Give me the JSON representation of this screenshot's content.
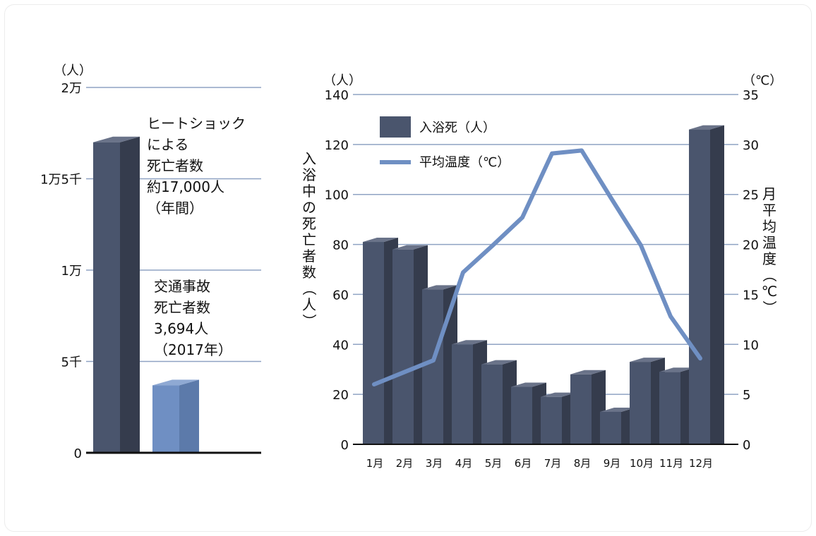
{
  "chart_data": [
    {
      "type": "bar",
      "ylabel_unit": "（人）",
      "y_tick_labels": [
        "0",
        "5千",
        "1万",
        "1万5千",
        "2万"
      ],
      "y_tick_values": [
        0,
        5000,
        10000,
        15000,
        20000
      ],
      "ylim": [
        0,
        20000
      ],
      "grid": true,
      "categories": [
        "ヒートショックによる死亡者数",
        "交通事故死亡者数"
      ],
      "values": [
        17000,
        3694
      ],
      "colors": [
        "#4a556d",
        "#6f8fc3"
      ],
      "annotations": [
        [
          "ヒートショック",
          "による",
          "死亡者数",
          "約17,000人",
          "（年間）"
        ],
        [
          "交通事故",
          "死亡者数",
          "3,694人",
          "（2017年）"
        ]
      ]
    },
    {
      "type": "bar+line",
      "left_unit": "（人）",
      "right_unit": "（℃）",
      "left_axis_label": "入浴中の死亡者数（人）",
      "right_axis_label": "月平均温度（℃）",
      "left_ticks": [
        "0",
        "20",
        "40",
        "60",
        "80",
        "100",
        "120",
        "140"
      ],
      "right_ticks": [
        "0",
        "5",
        "10",
        "15",
        "20",
        "25",
        "30",
        "35"
      ],
      "ylim_left": [
        0,
        140
      ],
      "ylim_right": [
        0,
        35
      ],
      "grid": true,
      "months": [
        "1月",
        "2月",
        "3月",
        "4月",
        "5月",
        "6月",
        "7月",
        "8月",
        "9月",
        "10月",
        "11月",
        "12月"
      ],
      "series": [
        {
          "name": "入浴死（人）",
          "type": "bar",
          "axis": "left",
          "values": [
            81,
            78,
            62,
            40,
            32,
            23,
            19,
            28,
            13,
            33,
            29,
            126
          ]
        },
        {
          "name": "平均温度（℃）",
          "type": "line",
          "axis": "right",
          "values": [
            6,
            7.2,
            8.4,
            17.2,
            19.9,
            22.7,
            29.1,
            29.4,
            24.6,
            19.9,
            12.8,
            8.6
          ]
        }
      ],
      "legend_position": "top-left",
      "colors": {
        "bar_front": "#4a556d",
        "bar_side": "#353c4d",
        "bar_top": "#6a7389",
        "line": "#6f8fc3",
        "grid": "#8fa3c3"
      }
    }
  ]
}
